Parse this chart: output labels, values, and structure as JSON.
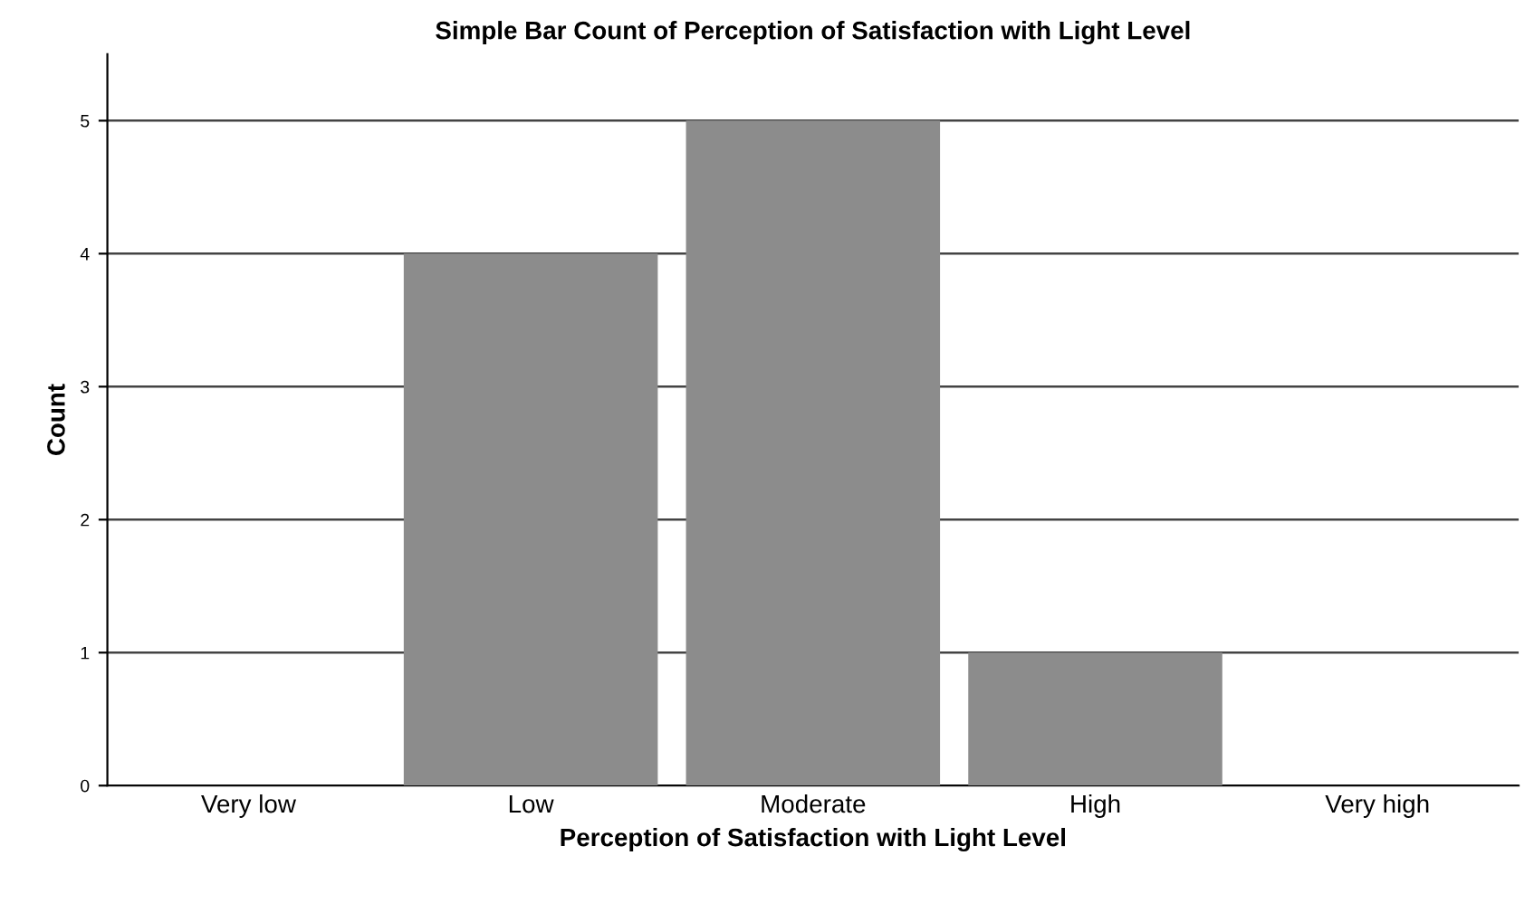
{
  "chart_data": {
    "type": "bar",
    "title": "Simple Bar Count of Perception of Satisfaction with Light Level",
    "xlabel": "Perception of Satisfaction with Light Level",
    "ylabel": "Count",
    "categories": [
      "Very low",
      "Low",
      "Moderate",
      "High",
      "Very high"
    ],
    "values": [
      0,
      4,
      5,
      1,
      0
    ],
    "color": "#8c8c8c",
    "ylim": [
      0,
      5.5
    ],
    "yticks": [
      0,
      1,
      2,
      3,
      4,
      5
    ],
    "grid": "y",
    "legend": false
  }
}
